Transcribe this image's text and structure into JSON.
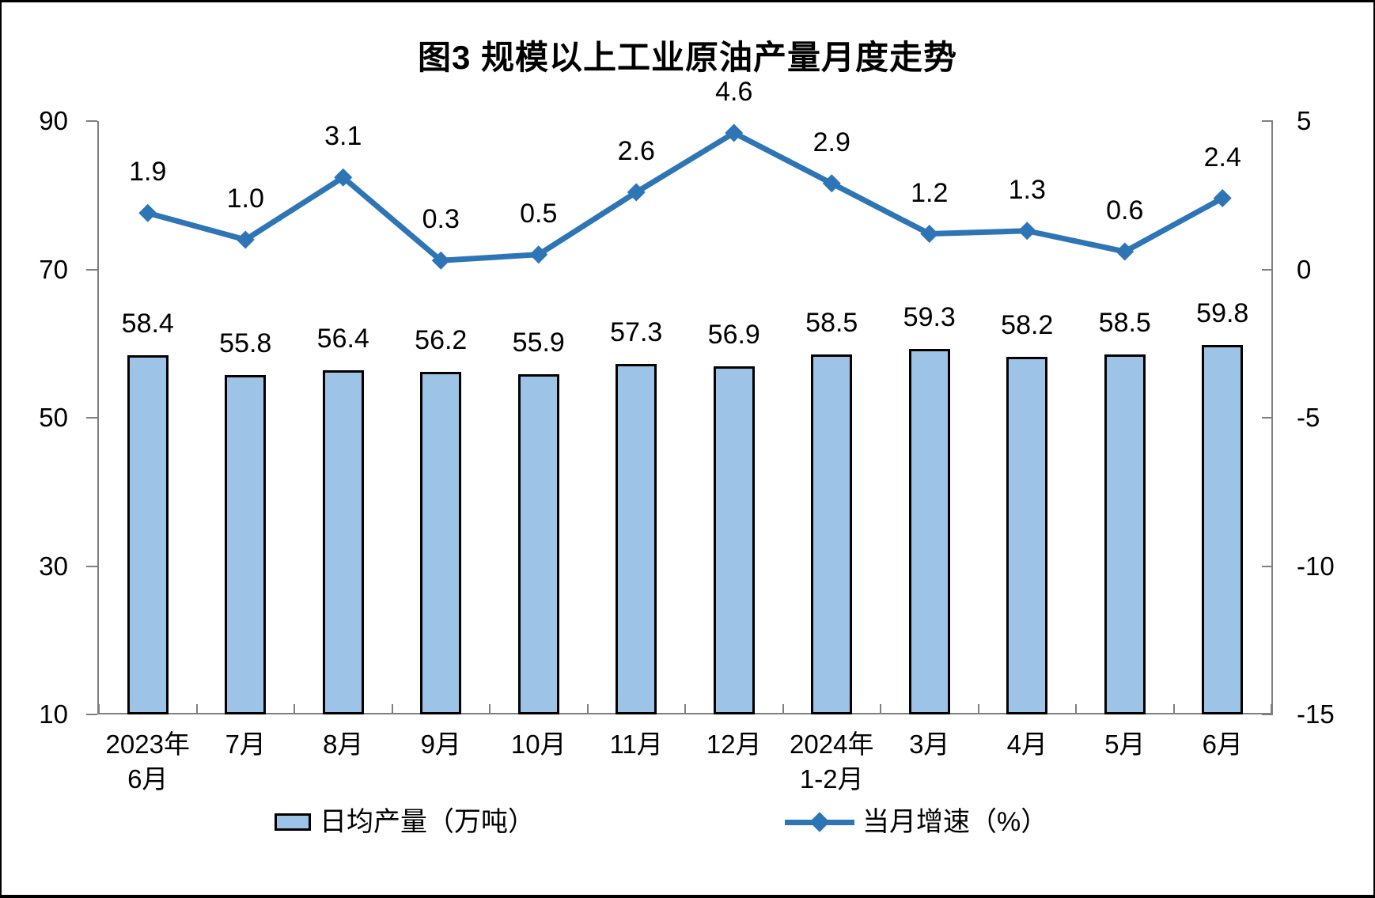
{
  "chart_data": {
    "type": "bar",
    "combo": "bar+line",
    "title": "图3 规模以上工业原油产量月度走势",
    "categories": [
      "2023年\n6月",
      "7月",
      "8月",
      "9月",
      "10月",
      "11月",
      "12月",
      "2024年\n1-2月",
      "3月",
      "4月",
      "5月",
      "6月"
    ],
    "series": [
      {
        "name": "日均产量（万吨）",
        "type": "bar",
        "axis": "left",
        "values": [
          58.4,
          55.8,
          56.4,
          56.2,
          55.9,
          57.3,
          56.9,
          58.5,
          59.3,
          58.2,
          58.5,
          59.8
        ]
      },
      {
        "name": "当月增速（%）",
        "type": "line",
        "axis": "right",
        "values": [
          1.9,
          1.0,
          3.1,
          0.3,
          0.5,
          2.6,
          4.6,
          2.9,
          1.2,
          1.3,
          0.6,
          2.4
        ]
      }
    ],
    "left_axis": {
      "min": 10,
      "max": 90,
      "ticks": [
        10,
        30,
        50,
        70,
        90
      ]
    },
    "right_axis": {
      "min": -15,
      "max": 5,
      "ticks": [
        -15,
        -10,
        -5,
        0,
        5
      ]
    },
    "grid": false,
    "legend_position": "bottom",
    "colors": {
      "bar_fill": "#9DC3E6",
      "bar_border": "#000000",
      "line": "#2E75B6",
      "axis": "#7F7F7F",
      "text": "#000000"
    }
  }
}
